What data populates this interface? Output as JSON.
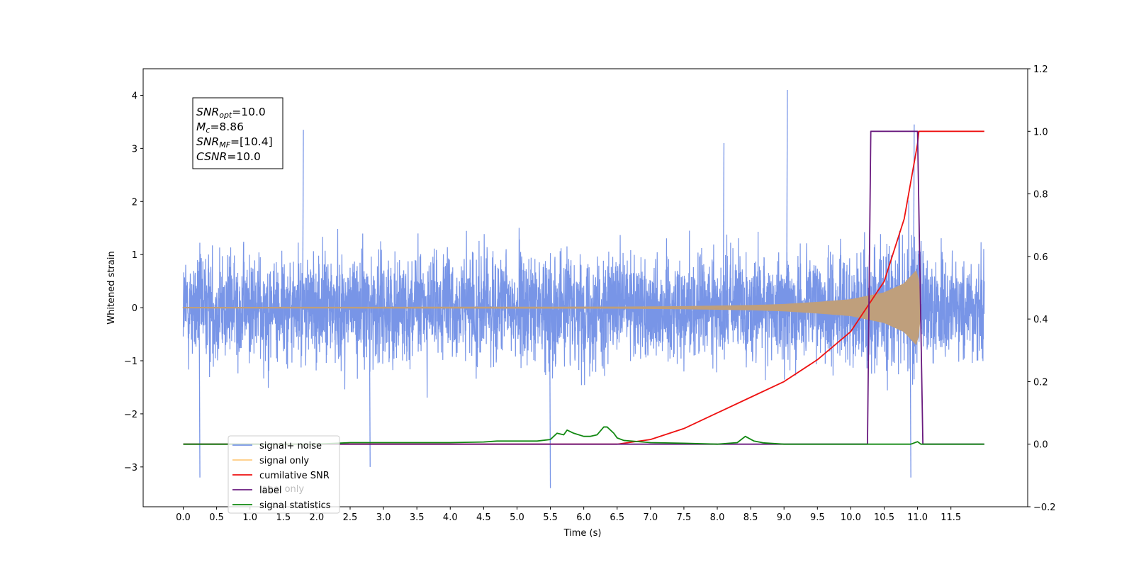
{
  "chart_data": {
    "type": "line",
    "xlabel": "Time (s)",
    "ylabel": "Whitened strain",
    "xlim": [
      -0.6,
      12.65
    ],
    "ylim_left": [
      -3.75,
      4.5
    ],
    "ylim_right": [
      -0.2,
      1.2
    ],
    "grid": false,
    "x_ticks": [
      "0.0",
      "0.5",
      "1.0",
      "1.5",
      "2.0",
      "2.5",
      "3.0",
      "3.5",
      "4.0",
      "4.5",
      "5.0",
      "5.5",
      "6.0",
      "6.5",
      "7.0",
      "7.5",
      "8.0",
      "8.5",
      "9.0",
      "9.5",
      "10.0",
      "10.5",
      "11.0",
      "11.5"
    ],
    "y_ticks_left": [
      "−3",
      "−2",
      "−1",
      "0",
      "1",
      "2",
      "3",
      "4"
    ],
    "y_ticks_right": [
      "−0.2",
      "0.0",
      "0.2",
      "0.4",
      "0.6",
      "0.8",
      "1.0",
      "1.2"
    ],
    "legend": {
      "placement": "lower-left",
      "entries": [
        {
          "name": "signal+ noise",
          "color": "#7895e7"
        },
        {
          "name": "signal only",
          "color": "#ffcc80"
        },
        {
          "name": "cumilative SNR",
          "color": "#ee1111"
        },
        {
          "name": "label",
          "color": "#6a1b7f"
        },
        {
          "name": "signal statistics",
          "color": "#118811"
        }
      ],
      "occluded_text": "label only"
    },
    "info_box": {
      "lines": [
        {
          "sym": "SNR",
          "sub": "opt",
          "val": "=10.0"
        },
        {
          "sym": "M",
          "sub": "c",
          "val": "=8.86"
        },
        {
          "sym": "SNR",
          "sub": "MF",
          "val": "=[10.4]"
        },
        {
          "sym": "CSNR",
          "sub": "",
          "val": "=10.0"
        }
      ]
    },
    "series": [
      {
        "name": "signal+ noise",
        "axis": "left",
        "style": "noise",
        "x_range": [
          0.0,
          12.0
        ],
        "approx_range": [
          -3.4,
          4.1
        ],
        "notable_peaks": [
          {
            "x": 0.25,
            "y": -3.2
          },
          {
            "x": 1.8,
            "y": 3.35
          },
          {
            "x": 2.8,
            "y": -3.0
          },
          {
            "x": 5.5,
            "y": -3.4
          },
          {
            "x": 9.05,
            "y": 4.1
          },
          {
            "x": 10.95,
            "y": 3.45
          },
          {
            "x": 10.9,
            "y": -3.2
          },
          {
            "x": 8.1,
            "y": 3.1
          }
        ]
      },
      {
        "name": "signal only",
        "axis": "left",
        "style": "chirp",
        "x": [
          0.0,
          6.5,
          7.5,
          8.5,
          9.0,
          9.5,
          10.0,
          10.5,
          10.8,
          11.0,
          11.05
        ],
        "amplitude": [
          0.005,
          0.01,
          0.02,
          0.04,
          0.06,
          0.1,
          0.15,
          0.28,
          0.45,
          0.72,
          0.0
        ]
      },
      {
        "name": "cumilative SNR",
        "axis": "right",
        "x": [
          0.0,
          6.5,
          7.0,
          7.5,
          8.0,
          8.5,
          9.0,
          9.5,
          10.0,
          10.5,
          10.8,
          11.0,
          11.02,
          12.0
        ],
        "y": [
          0.0,
          0.0,
          0.015,
          0.05,
          0.1,
          0.15,
          0.2,
          0.27,
          0.36,
          0.52,
          0.72,
          0.96,
          1.0,
          1.0
        ]
      },
      {
        "name": "label",
        "axis": "right",
        "x": [
          0.0,
          10.25,
          10.3,
          11.0,
          11.08,
          12.0
        ],
        "y": [
          0.0,
          0.0,
          1.0,
          1.0,
          0.0,
          0.0
        ]
      },
      {
        "name": "signal statistics",
        "axis": "right",
        "x": [
          0.0,
          2.0,
          2.5,
          3.0,
          3.5,
          4.0,
          4.5,
          4.7,
          5.0,
          5.3,
          5.5,
          5.6,
          5.7,
          5.75,
          5.85,
          6.0,
          6.1,
          6.2,
          6.3,
          6.35,
          6.45,
          6.5,
          6.6,
          7.0,
          7.5,
          8.0,
          8.3,
          8.42,
          8.55,
          8.7,
          9.0,
          9.5,
          10.0,
          10.5,
          10.9,
          11.0,
          11.05,
          12.0
        ],
        "y": [
          0.0,
          0.0,
          0.005,
          0.005,
          0.005,
          0.005,
          0.007,
          0.01,
          0.01,
          0.01,
          0.015,
          0.035,
          0.03,
          0.045,
          0.035,
          0.025,
          0.025,
          0.03,
          0.055,
          0.055,
          0.035,
          0.02,
          0.012,
          0.005,
          0.003,
          0.0,
          0.005,
          0.025,
          0.01,
          0.004,
          0.0,
          0.0,
          0.0,
          0.0,
          0.0,
          0.008,
          0.0,
          0.0
        ]
      }
    ]
  }
}
